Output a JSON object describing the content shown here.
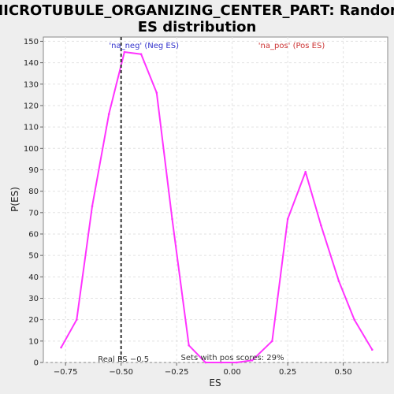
{
  "chart_data": {
    "type": "line",
    "title_lines": [
      "MICROTUBULE_ORGANIZING_CENTER_PART: Random",
      "ES distribution"
    ],
    "xlabel": "ES",
    "ylabel": "P(ES)",
    "xlim": [
      -0.85,
      0.7
    ],
    "ylim": [
      0,
      152
    ],
    "xticks": [
      -0.75,
      -0.5,
      -0.25,
      0.0,
      0.25,
      0.5
    ],
    "xtick_labels": [
      "−0.75",
      "−0.50",
      "−0.25",
      "0.00",
      "0.25",
      "0.50"
    ],
    "yticks": [
      0,
      10,
      20,
      30,
      40,
      50,
      60,
      70,
      80,
      90,
      100,
      110,
      120,
      130,
      140,
      150
    ],
    "grid": true,
    "series": [
      {
        "color": "#ff33ff",
        "x": [
          -0.77,
          -0.7,
          -0.63,
          -0.555,
          -0.485,
          -0.41,
          -0.34,
          -0.27,
          -0.195,
          -0.12,
          -0.05,
          0.02,
          0.09,
          0.18,
          0.25,
          0.33,
          0.4,
          0.48,
          0.55,
          0.63
        ],
        "y": [
          7,
          20,
          73,
          116,
          145,
          144,
          126,
          67,
          8,
          0,
          0,
          0,
          1,
          10,
          67,
          89,
          64,
          38,
          20,
          6
        ]
      }
    ],
    "real_es": -0.5,
    "annotations": {
      "neg_label": "'na_neg' (Neg ES)",
      "neg_color": "#3333cc",
      "pos_label": "'na_pos' (Pos ES)",
      "pos_color": "#cc3333",
      "real_es_label": "Real ES −0.5",
      "sets_label": "Sets with pos scores: 29%"
    }
  }
}
